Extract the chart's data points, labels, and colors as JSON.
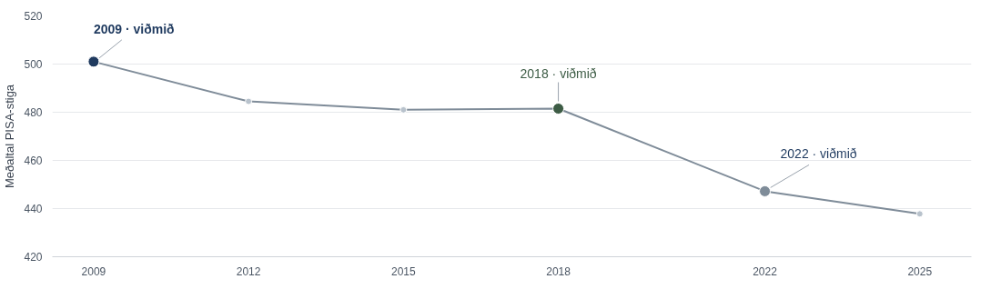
{
  "chart_data": {
    "type": "line",
    "ylabel": "Meðaltal PISA-stiga",
    "x": [
      2009,
      2012,
      2015,
      2018,
      2022,
      2025
    ],
    "series": [
      {
        "color": "#7f8c99",
        "values": [
          501,
          484.5,
          481,
          481.5,
          447.2,
          437.8
        ],
        "colors": [
          "#1f3a5f",
          "#b8c2cc",
          "#b8c2cc",
          "#3d5c45",
          "#7f8c99",
          "#b8c2cc"
        ]
      }
    ],
    "xlim": [
      2008.2,
      2026
    ],
    "xticks": [
      2009,
      2012,
      2015,
      2018,
      2022,
      2025
    ],
    "ylim": [
      420,
      520
    ],
    "yticks": [
      420,
      440,
      460,
      480,
      500,
      520
    ],
    "grid": "y",
    "marker": "circle",
    "line_style": "solid",
    "annotations": [
      {
        "text": "2009 · viðmið",
        "x": 2009,
        "y": 501
      },
      {
        "text": "2018 · viðmið",
        "x": 2018,
        "y": 481.5
      },
      {
        "text": "2022 · viðmið",
        "x": 2022,
        "y": 447.2
      }
    ]
  }
}
